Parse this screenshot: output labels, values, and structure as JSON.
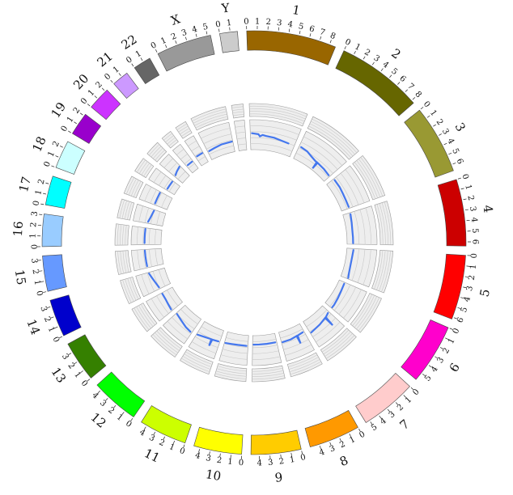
{
  "chart_data": {
    "type": "circos",
    "tick_step": 1,
    "grid_lines": 5,
    "line_color": "#4477ee",
    "chromosomes": [
      {
        "name": "1",
        "len": 8.6,
        "color": "#996600"
      },
      {
        "name": "2",
        "len": 8.3,
        "color": "#666600"
      },
      {
        "name": "3",
        "len": 6.6,
        "color": "#999933"
      },
      {
        "name": "4",
        "len": 6.4,
        "color": "#cc0000"
      },
      {
        "name": "5",
        "len": 6.2,
        "color": "#ff0000"
      },
      {
        "name": "6",
        "len": 5.8,
        "color": "#ff00cc"
      },
      {
        "name": "7",
        "len": 5.4,
        "color": "#ffcccc"
      },
      {
        "name": "8",
        "len": 4.9,
        "color": "#ff9900"
      },
      {
        "name": "9",
        "len": 4.8,
        "color": "#ffcc00"
      },
      {
        "name": "10",
        "len": 4.6,
        "color": "#ffff00"
      },
      {
        "name": "11",
        "len": 4.6,
        "color": "#ccff00"
      },
      {
        "name": "12",
        "len": 4.6,
        "color": "#00ff00"
      },
      {
        "name": "13",
        "len": 3.9,
        "color": "#358000"
      },
      {
        "name": "14",
        "len": 3.6,
        "color": "#0000cc"
      },
      {
        "name": "15",
        "len": 3.4,
        "color": "#6699ff"
      },
      {
        "name": "16",
        "len": 3.1,
        "color": "#99ccff"
      },
      {
        "name": "17",
        "len": 2.8,
        "color": "#00ffff"
      },
      {
        "name": "18",
        "len": 2.7,
        "color": "#ccffff"
      },
      {
        "name": "19",
        "len": 2.2,
        "color": "#9900cc"
      },
      {
        "name": "20",
        "len": 2.2,
        "color": "#cc33ff"
      },
      {
        "name": "21",
        "len": 1.6,
        "color": "#cc99ff"
      },
      {
        "name": "22",
        "len": 1.7,
        "color": "#666666"
      },
      {
        "name": "X",
        "len": 5.3,
        "color": "#999999"
      },
      {
        "name": "Y",
        "len": 1.7,
        "color": "#cccccc"
      }
    ],
    "line_values": [
      {
        "chr": "1",
        "points": [
          [
            0.3,
            0.55
          ],
          [
            1.5,
            0.52
          ],
          [
            1.8,
            0.45
          ],
          [
            2.3,
            0.5
          ],
          [
            2.9,
            0.48
          ],
          [
            4.5,
            0.46
          ],
          [
            6.0,
            0.42
          ],
          [
            7.4,
            0.4
          ]
        ]
      },
      {
        "chr": "2",
        "points": [
          [
            0.4,
            0.45
          ],
          [
            1.8,
            0.42
          ],
          [
            3.0,
            0.35
          ],
          [
            4.2,
            0.3
          ],
          [
            4.5,
            0.3
          ],
          [
            4.6,
            0.05
          ],
          [
            4.7,
            0.3
          ],
          [
            6.5,
            0.28
          ],
          [
            8.0,
            0.25
          ]
        ]
      },
      {
        "chr": "3",
        "points": [
          [
            0.3,
            0.3
          ],
          [
            2.0,
            0.3
          ],
          [
            3.5,
            0.28
          ],
          [
            5.0,
            0.27
          ],
          [
            6.3,
            0.27
          ]
        ]
      },
      {
        "chr": "4",
        "points": [
          [
            0.3,
            0.25
          ],
          [
            2.0,
            0.22
          ],
          [
            3.5,
            0.2
          ],
          [
            5.0,
            0.2
          ],
          [
            6.2,
            0.2
          ]
        ]
      },
      {
        "chr": "5",
        "points": [
          [
            0.3,
            0.22
          ],
          [
            2.0,
            0.2
          ],
          [
            3.5,
            0.2
          ],
          [
            5.0,
            0.22
          ],
          [
            6.0,
            0.25
          ]
        ]
      },
      {
        "chr": "6",
        "points": [
          [
            0.3,
            0.2
          ],
          [
            2.0,
            0.22
          ],
          [
            3.5,
            0.25
          ],
          [
            5.0,
            0.28
          ],
          [
            5.6,
            0.28
          ]
        ]
      },
      {
        "chr": "7",
        "points": [
          [
            0.3,
            0.3
          ],
          [
            1.2,
            0.35
          ],
          [
            1.3,
            0.7
          ],
          [
            1.4,
            0.35
          ],
          [
            3.0,
            0.4
          ],
          [
            5.2,
            0.45
          ]
        ]
      },
      {
        "chr": "8",
        "points": [
          [
            0.3,
            0.3
          ],
          [
            1.5,
            0.32
          ],
          [
            1.6,
            0.6
          ],
          [
            1.7,
            0.32
          ],
          [
            3.0,
            0.35
          ],
          [
            4.7,
            0.35
          ]
        ]
      },
      {
        "chr": "9",
        "points": [
          [
            0.3,
            0.3
          ],
          [
            2.0,
            0.3
          ],
          [
            3.5,
            0.3
          ],
          [
            4.6,
            0.3
          ]
        ]
      },
      {
        "chr": "10",
        "points": [
          [
            0.3,
            0.35
          ],
          [
            2.0,
            0.35
          ],
          [
            3.2,
            0.36
          ],
          [
            4.4,
            0.38
          ]
        ]
      },
      {
        "chr": "11",
        "points": [
          [
            0.3,
            0.4
          ],
          [
            1.5,
            0.42
          ],
          [
            1.6,
            0.65
          ],
          [
            1.7,
            0.42
          ],
          [
            3.0,
            0.45
          ],
          [
            4.4,
            0.5
          ]
        ]
      },
      {
        "chr": "12",
        "points": [
          [
            0.3,
            0.55
          ],
          [
            1.5,
            0.52
          ],
          [
            3.0,
            0.45
          ],
          [
            4.4,
            0.4
          ]
        ]
      },
      {
        "chr": "13",
        "points": [
          [
            0.3,
            0.45
          ],
          [
            1.5,
            0.42
          ],
          [
            2.5,
            0.4
          ],
          [
            3.7,
            0.4
          ]
        ]
      },
      {
        "chr": "14",
        "points": [
          [
            0.3,
            0.4
          ],
          [
            1.5,
            0.45
          ],
          [
            2.5,
            0.5
          ],
          [
            3.4,
            0.55
          ]
        ]
      },
      {
        "chr": "15",
        "points": [
          [
            0.3,
            0.55
          ],
          [
            1.2,
            0.55
          ],
          [
            2.2,
            0.55
          ],
          [
            3.2,
            0.55
          ]
        ]
      },
      {
        "chr": "16",
        "points": [
          [
            0.3,
            0.55
          ],
          [
            1.2,
            0.55
          ],
          [
            2.0,
            0.55
          ],
          [
            2.9,
            0.55
          ]
        ]
      },
      {
        "chr": "17",
        "points": [
          [
            0.3,
            0.5
          ],
          [
            1.2,
            0.45
          ],
          [
            2.0,
            0.42
          ],
          [
            2.6,
            0.4
          ]
        ]
      },
      {
        "chr": "18",
        "points": [
          [
            0.3,
            0.45
          ],
          [
            1.3,
            0.45
          ],
          [
            2.5,
            0.45
          ]
        ]
      },
      {
        "chr": "19",
        "points": [
          [
            0.3,
            0.3
          ],
          [
            1.0,
            0.3
          ],
          [
            2.0,
            0.3
          ]
        ]
      },
      {
        "chr": "20",
        "points": [
          [
            0.3,
            0.35
          ],
          [
            1.0,
            0.4
          ],
          [
            2.0,
            0.45
          ]
        ]
      },
      {
        "chr": "21",
        "points": [
          [
            0.3,
            0.3
          ],
          [
            0.9,
            0.3
          ],
          [
            1.4,
            0.3
          ]
        ]
      },
      {
        "chr": "22",
        "points": [
          [
            0.3,
            0.35
          ],
          [
            1.0,
            0.35
          ],
          [
            1.5,
            0.35
          ]
        ]
      },
      {
        "chr": "X",
        "points": [
          [
            0.3,
            0.3
          ],
          [
            1.5,
            0.32
          ],
          [
            3.0,
            0.35
          ],
          [
            5.1,
            0.35
          ]
        ]
      },
      {
        "chr": "Y",
        "points": []
      }
    ]
  }
}
